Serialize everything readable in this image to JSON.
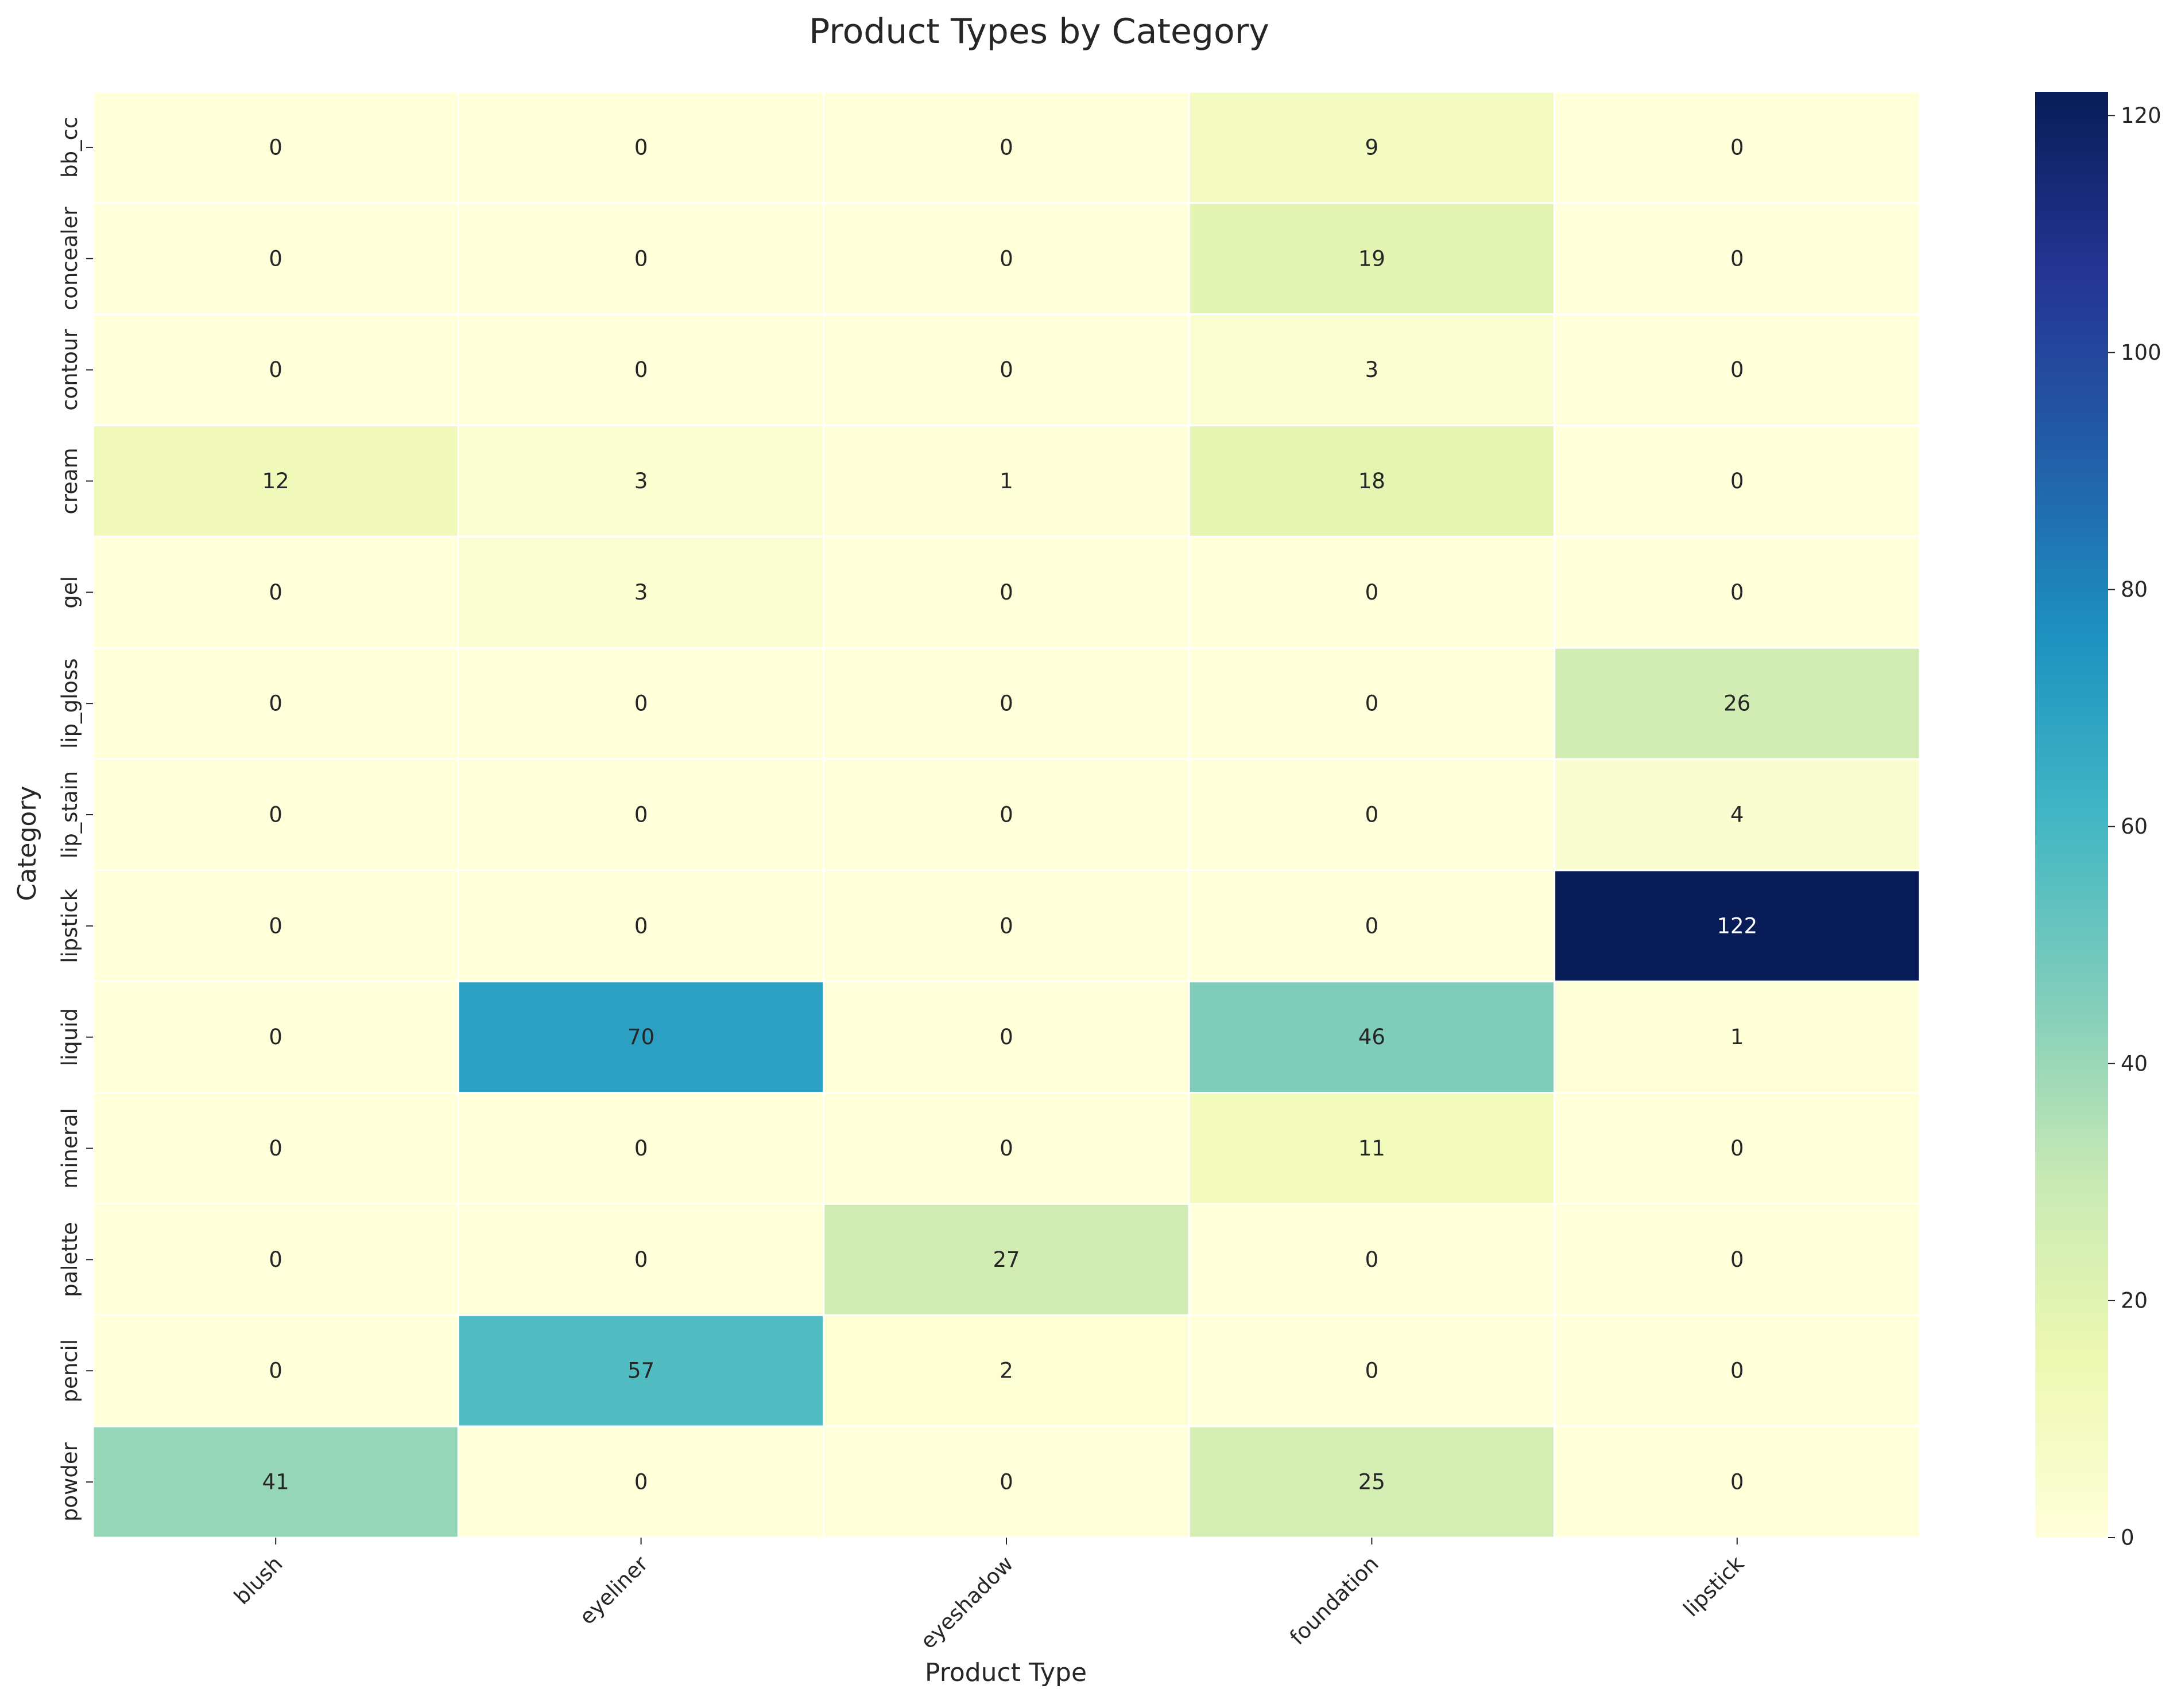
{
  "chart_data": {
    "type": "heatmap",
    "title": "Product Types by Category",
    "xlabel": "Product Type",
    "ylabel": "Category",
    "x_categories": [
      "blush",
      "eyeliner",
      "eyeshadow",
      "foundation",
      "lipstick"
    ],
    "y_categories": [
      "bb_cc",
      "concealer",
      "contour",
      "cream",
      "gel",
      "lip_gloss",
      "lip_stain",
      "lipstick",
      "liquid",
      "mineral",
      "palette",
      "pencil",
      "powder"
    ],
    "values": [
      [
        0,
        0,
        0,
        9,
        0
      ],
      [
        0,
        0,
        0,
        19,
        0
      ],
      [
        0,
        0,
        0,
        3,
        0
      ],
      [
        12,
        3,
        1,
        18,
        0
      ],
      [
        0,
        3,
        0,
        0,
        0
      ],
      [
        0,
        0,
        0,
        0,
        26
      ],
      [
        0,
        0,
        0,
        0,
        4
      ],
      [
        0,
        0,
        0,
        0,
        122
      ],
      [
        0,
        70,
        0,
        46,
        1
      ],
      [
        0,
        0,
        0,
        11,
        0
      ],
      [
        0,
        0,
        27,
        0,
        0
      ],
      [
        0,
        57,
        2,
        0,
        0
      ],
      [
        41,
        0,
        0,
        25,
        0
      ]
    ],
    "colormap": "YlGnBu",
    "value_range": [
      0,
      122
    ],
    "colorbar_ticks": [
      0,
      20,
      40,
      60,
      80,
      100,
      120
    ],
    "annotated": true,
    "grid": false,
    "legend": "colorbar-right"
  }
}
